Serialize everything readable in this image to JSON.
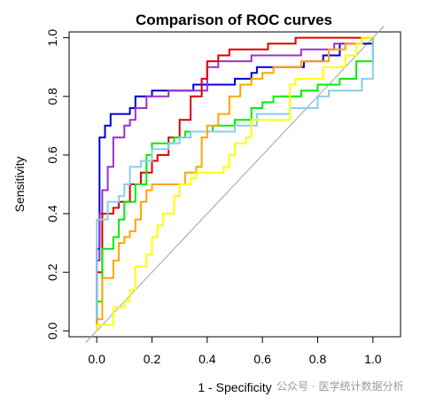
{
  "chart_data": {
    "type": "line",
    "title": "Comparison of ROC curves",
    "xlabel": "1 - Specificity",
    "ylabel": "Sensitivity",
    "xlim": [
      -0.1,
      1.1
    ],
    "ylim": [
      -0.02,
      1.02
    ],
    "xticks": [
      "0.0",
      "0.2",
      "0.4",
      "0.6",
      "0.8",
      "1.0"
    ],
    "yticks": [
      "0.0",
      "0.2",
      "0.4",
      "0.6",
      "0.8",
      "1.0"
    ],
    "diagonal_color": "#a0a0a0",
    "series": [
      {
        "color": "#808080",
        "points": [
          [
            0,
            0
          ],
          [
            1,
            1
          ]
        ]
      },
      {
        "color": "#0000cd",
        "points": [
          [
            0,
            0
          ],
          [
            0,
            0.25
          ],
          [
            0,
            0.28
          ],
          [
            0.01,
            0.28
          ],
          [
            0.01,
            0.66
          ],
          [
            0.03,
            0.66
          ],
          [
            0.03,
            0.7
          ],
          [
            0.05,
            0.7
          ],
          [
            0.05,
            0.74
          ],
          [
            0.12,
            0.74
          ],
          [
            0.12,
            0.76
          ],
          [
            0.14,
            0.76
          ],
          [
            0.14,
            0.8
          ],
          [
            0.2,
            0.8
          ],
          [
            0.2,
            0.82
          ],
          [
            0.35,
            0.82
          ],
          [
            0.35,
            0.84
          ],
          [
            0.5,
            0.84
          ],
          [
            0.5,
            0.86
          ],
          [
            0.56,
            0.86
          ],
          [
            0.56,
            0.88
          ],
          [
            0.58,
            0.88
          ],
          [
            0.58,
            0.9
          ],
          [
            0.75,
            0.9
          ],
          [
            0.75,
            0.92
          ],
          [
            0.82,
            0.92
          ],
          [
            0.82,
            0.94
          ],
          [
            0.88,
            0.94
          ],
          [
            0.88,
            0.98
          ],
          [
            1,
            0.98
          ],
          [
            1,
            1
          ]
        ]
      },
      {
        "color": "#9932cc",
        "points": [
          [
            0,
            0
          ],
          [
            0,
            0.24
          ],
          [
            0.01,
            0.24
          ],
          [
            0.01,
            0.4
          ],
          [
            0.02,
            0.4
          ],
          [
            0.02,
            0.48
          ],
          [
            0.04,
            0.48
          ],
          [
            0.04,
            0.56
          ],
          [
            0.06,
            0.56
          ],
          [
            0.06,
            0.66
          ],
          [
            0.1,
            0.66
          ],
          [
            0.1,
            0.7
          ],
          [
            0.12,
            0.7
          ],
          [
            0.12,
            0.72
          ],
          [
            0.14,
            0.72
          ],
          [
            0.14,
            0.76
          ],
          [
            0.18,
            0.76
          ],
          [
            0.18,
            0.8
          ],
          [
            0.26,
            0.8
          ],
          [
            0.26,
            0.82
          ],
          [
            0.4,
            0.82
          ],
          [
            0.4,
            0.9
          ],
          [
            0.44,
            0.9
          ],
          [
            0.44,
            0.92
          ],
          [
            0.56,
            0.92
          ],
          [
            0.56,
            0.94
          ],
          [
            0.74,
            0.94
          ],
          [
            0.74,
            0.96
          ],
          [
            0.86,
            0.96
          ],
          [
            0.86,
            0.98
          ],
          [
            0.96,
            0.98
          ],
          [
            0.96,
            1
          ],
          [
            1,
            1
          ]
        ]
      },
      {
        "color": "#dd0000",
        "points": [
          [
            0,
            0
          ],
          [
            0,
            0.2
          ],
          [
            0.02,
            0.2
          ],
          [
            0.02,
            0.4
          ],
          [
            0.06,
            0.4
          ],
          [
            0.06,
            0.42
          ],
          [
            0.08,
            0.42
          ],
          [
            0.08,
            0.44
          ],
          [
            0.12,
            0.44
          ],
          [
            0.12,
            0.5
          ],
          [
            0.16,
            0.5
          ],
          [
            0.16,
            0.54
          ],
          [
            0.2,
            0.54
          ],
          [
            0.2,
            0.58
          ],
          [
            0.22,
            0.58
          ],
          [
            0.22,
            0.6
          ],
          [
            0.26,
            0.6
          ],
          [
            0.26,
            0.66
          ],
          [
            0.3,
            0.66
          ],
          [
            0.3,
            0.72
          ],
          [
            0.34,
            0.72
          ],
          [
            0.34,
            0.8
          ],
          [
            0.38,
            0.8
          ],
          [
            0.38,
            0.86
          ],
          [
            0.4,
            0.86
          ],
          [
            0.4,
            0.92
          ],
          [
            0.44,
            0.92
          ],
          [
            0.44,
            0.94
          ],
          [
            0.48,
            0.94
          ],
          [
            0.48,
            0.96
          ],
          [
            0.62,
            0.96
          ],
          [
            0.62,
            0.98
          ],
          [
            0.72,
            0.98
          ],
          [
            0.72,
            1
          ],
          [
            1,
            1
          ]
        ]
      },
      {
        "color": "#00ee00",
        "points": [
          [
            0,
            0
          ],
          [
            0,
            0.1
          ],
          [
            0.02,
            0.1
          ],
          [
            0.02,
            0.28
          ],
          [
            0.06,
            0.28
          ],
          [
            0.06,
            0.32
          ],
          [
            0.08,
            0.32
          ],
          [
            0.08,
            0.38
          ],
          [
            0.1,
            0.38
          ],
          [
            0.1,
            0.44
          ],
          [
            0.14,
            0.44
          ],
          [
            0.14,
            0.5
          ],
          [
            0.18,
            0.5
          ],
          [
            0.18,
            0.6
          ],
          [
            0.2,
            0.6
          ],
          [
            0.2,
            0.64
          ],
          [
            0.28,
            0.64
          ],
          [
            0.28,
            0.66
          ],
          [
            0.32,
            0.66
          ],
          [
            0.32,
            0.68
          ],
          [
            0.42,
            0.68
          ],
          [
            0.42,
            0.7
          ],
          [
            0.5,
            0.7
          ],
          [
            0.5,
            0.72
          ],
          [
            0.56,
            0.72
          ],
          [
            0.56,
            0.76
          ],
          [
            0.6,
            0.76
          ],
          [
            0.6,
            0.78
          ],
          [
            0.64,
            0.78
          ],
          [
            0.64,
            0.8
          ],
          [
            0.74,
            0.8
          ],
          [
            0.74,
            0.82
          ],
          [
            0.8,
            0.82
          ],
          [
            0.8,
            0.84
          ],
          [
            0.88,
            0.84
          ],
          [
            0.88,
            0.86
          ],
          [
            0.94,
            0.86
          ],
          [
            0.94,
            0.92
          ],
          [
            1,
            0.92
          ],
          [
            1,
            1
          ]
        ]
      },
      {
        "color": "#87ceeb",
        "points": [
          [
            0,
            0
          ],
          [
            0,
            0.38
          ],
          [
            0.04,
            0.38
          ],
          [
            0.04,
            0.44
          ],
          [
            0.08,
            0.44
          ],
          [
            0.08,
            0.46
          ],
          [
            0.1,
            0.46
          ],
          [
            0.1,
            0.5
          ],
          [
            0.12,
            0.5
          ],
          [
            0.12,
            0.56
          ],
          [
            0.16,
            0.56
          ],
          [
            0.16,
            0.58
          ],
          [
            0.2,
            0.58
          ],
          [
            0.2,
            0.62
          ],
          [
            0.26,
            0.62
          ],
          [
            0.26,
            0.64
          ],
          [
            0.3,
            0.64
          ],
          [
            0.3,
            0.66
          ],
          [
            0.34,
            0.66
          ],
          [
            0.34,
            0.68
          ],
          [
            0.5,
            0.68
          ],
          [
            0.5,
            0.7
          ],
          [
            0.58,
            0.7
          ],
          [
            0.58,
            0.74
          ],
          [
            0.7,
            0.74
          ],
          [
            0.7,
            0.76
          ],
          [
            0.8,
            0.76
          ],
          [
            0.8,
            0.8
          ],
          [
            0.84,
            0.8
          ],
          [
            0.84,
            0.82
          ],
          [
            0.96,
            0.82
          ],
          [
            0.96,
            0.86
          ],
          [
            1,
            0.86
          ],
          [
            1,
            0.9
          ],
          [
            1,
            1
          ]
        ]
      },
      {
        "color": "#ffa500",
        "points": [
          [
            0,
            0
          ],
          [
            0,
            0.04
          ],
          [
            0.02,
            0.04
          ],
          [
            0.02,
            0.18
          ],
          [
            0.06,
            0.18
          ],
          [
            0.06,
            0.24
          ],
          [
            0.08,
            0.24
          ],
          [
            0.08,
            0.3
          ],
          [
            0.1,
            0.3
          ],
          [
            0.1,
            0.32
          ],
          [
            0.12,
            0.32
          ],
          [
            0.12,
            0.34
          ],
          [
            0.14,
            0.34
          ],
          [
            0.14,
            0.38
          ],
          [
            0.16,
            0.38
          ],
          [
            0.16,
            0.44
          ],
          [
            0.18,
            0.44
          ],
          [
            0.18,
            0.48
          ],
          [
            0.2,
            0.48
          ],
          [
            0.2,
            0.5
          ],
          [
            0.32,
            0.5
          ],
          [
            0.32,
            0.54
          ],
          [
            0.36,
            0.54
          ],
          [
            0.36,
            0.56
          ],
          [
            0.38,
            0.56
          ],
          [
            0.38,
            0.66
          ],
          [
            0.4,
            0.66
          ],
          [
            0.4,
            0.7
          ],
          [
            0.44,
            0.7
          ],
          [
            0.44,
            0.74
          ],
          [
            0.48,
            0.74
          ],
          [
            0.48,
            0.8
          ],
          [
            0.52,
            0.8
          ],
          [
            0.52,
            0.84
          ],
          [
            0.56,
            0.84
          ],
          [
            0.56,
            0.86
          ],
          [
            0.6,
            0.86
          ],
          [
            0.6,
            0.88
          ],
          [
            0.64,
            0.88
          ],
          [
            0.64,
            0.9
          ],
          [
            0.74,
            0.9
          ],
          [
            0.74,
            0.92
          ],
          [
            0.84,
            0.92
          ],
          [
            0.84,
            0.96
          ],
          [
            0.9,
            0.96
          ],
          [
            0.9,
            0.98
          ],
          [
            0.96,
            0.98
          ],
          [
            0.96,
            1
          ],
          [
            1,
            1
          ]
        ]
      },
      {
        "color": "#ffff00",
        "points": [
          [
            0,
            0
          ],
          [
            0,
            0.02
          ],
          [
            0.06,
            0.02
          ],
          [
            0.06,
            0.08
          ],
          [
            0.1,
            0.08
          ],
          [
            0.1,
            0.1
          ],
          [
            0.12,
            0.1
          ],
          [
            0.12,
            0.14
          ],
          [
            0.14,
            0.14
          ],
          [
            0.14,
            0.22
          ],
          [
            0.18,
            0.22
          ],
          [
            0.18,
            0.26
          ],
          [
            0.2,
            0.26
          ],
          [
            0.2,
            0.32
          ],
          [
            0.22,
            0.32
          ],
          [
            0.22,
            0.36
          ],
          [
            0.24,
            0.36
          ],
          [
            0.24,
            0.4
          ],
          [
            0.28,
            0.4
          ],
          [
            0.28,
            0.46
          ],
          [
            0.3,
            0.46
          ],
          [
            0.3,
            0.5
          ],
          [
            0.34,
            0.5
          ],
          [
            0.34,
            0.52
          ],
          [
            0.36,
            0.52
          ],
          [
            0.36,
            0.54
          ],
          [
            0.46,
            0.54
          ],
          [
            0.46,
            0.56
          ],
          [
            0.48,
            0.56
          ],
          [
            0.48,
            0.6
          ],
          [
            0.5,
            0.6
          ],
          [
            0.5,
            0.64
          ],
          [
            0.54,
            0.64
          ],
          [
            0.54,
            0.66
          ],
          [
            0.56,
            0.66
          ],
          [
            0.56,
            0.72
          ],
          [
            0.7,
            0.72
          ],
          [
            0.7,
            0.84
          ],
          [
            0.72,
            0.84
          ],
          [
            0.72,
            0.86
          ],
          [
            0.82,
            0.86
          ],
          [
            0.82,
            0.9
          ],
          [
            0.9,
            0.9
          ],
          [
            0.9,
            0.94
          ],
          [
            0.94,
            0.94
          ],
          [
            0.94,
            0.98
          ],
          [
            0.96,
            0.98
          ],
          [
            0.96,
            1
          ],
          [
            1,
            1
          ]
        ]
      }
    ]
  },
  "watermark": "公众号 · 医学统计数据分析"
}
